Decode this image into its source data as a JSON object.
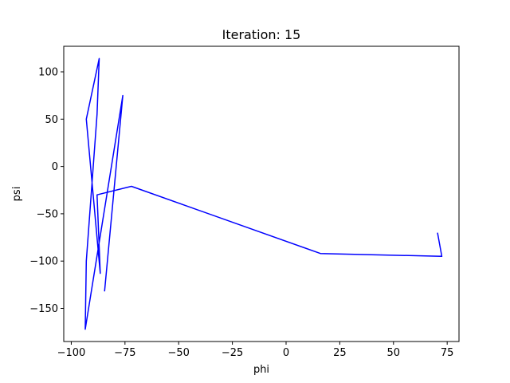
{
  "chart_data": {
    "type": "line",
    "title": "Iteration: 15",
    "xlabel": "phi",
    "ylabel": "psi",
    "xlim": [
      -103.5,
      80.5
    ],
    "ylim": [
      -185,
      127
    ],
    "xticks": [
      -100,
      -75,
      -50,
      -25,
      0,
      25,
      50,
      75
    ],
    "yticks": [
      -150,
      -100,
      -50,
      0,
      50,
      100
    ],
    "xtick_labels": [
      "−100",
      "−75",
      "−50",
      "−25",
      "0",
      "25",
      "50",
      "75"
    ],
    "ytick_labels": [
      "−150",
      "−100",
      "−50",
      "0",
      "50",
      "100"
    ],
    "grid": false,
    "legend": null,
    "series": [
      {
        "color": "#0000ff",
        "points": [
          [
            70.5,
            -70
          ],
          [
            72.5,
            -95
          ],
          [
            16,
            -92
          ],
          [
            -72,
            -21
          ],
          [
            -88,
            -30
          ],
          [
            -86.5,
            -113
          ],
          [
            -93,
            50
          ],
          [
            -87,
            114
          ],
          [
            -88,
            55
          ],
          [
            -93,
            -100
          ],
          [
            -93.5,
            -172
          ],
          [
            -76,
            75
          ],
          [
            -84.5,
            -132
          ]
        ]
      }
    ]
  }
}
